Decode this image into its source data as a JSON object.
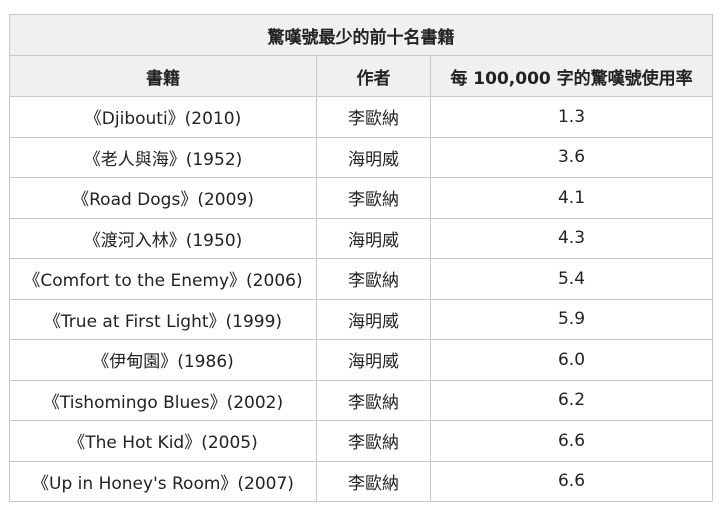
{
  "table": {
    "title": "驚嘆號最少的前十名書籍",
    "headers": [
      "書籍",
      "作者",
      "每 100,000 字的驚嘆號使用率"
    ],
    "rows": [
      [
        "《Djibouti》(2010)",
        "李歐納",
        "1.3"
      ],
      [
        "《老人與海》(1952)",
        "海明威",
        "3.6"
      ],
      [
        "《Road Dogs》(2009)",
        "李歐納",
        "4.1"
      ],
      [
        "《渡河入林》(1950)",
        "海明威",
        "4.3"
      ],
      [
        "《Comfort to the Enemy》(2006)",
        "李歐納",
        "5.4"
      ],
      [
        "《True at First Light》(1999)",
        "海明威",
        "5.9"
      ],
      [
        "《伊甸園》(1986)",
        "海明威",
        "6.0"
      ],
      [
        "《Tishomingo Blues》(2002)",
        "李歐納",
        "6.2"
      ],
      [
        "《The Hot Kid》(2005)",
        "李歐納",
        "6.6"
      ],
      [
        "《Up in Honey's Room》(2007)",
        "李歐納",
        "6.6"
      ]
    ]
  }
}
